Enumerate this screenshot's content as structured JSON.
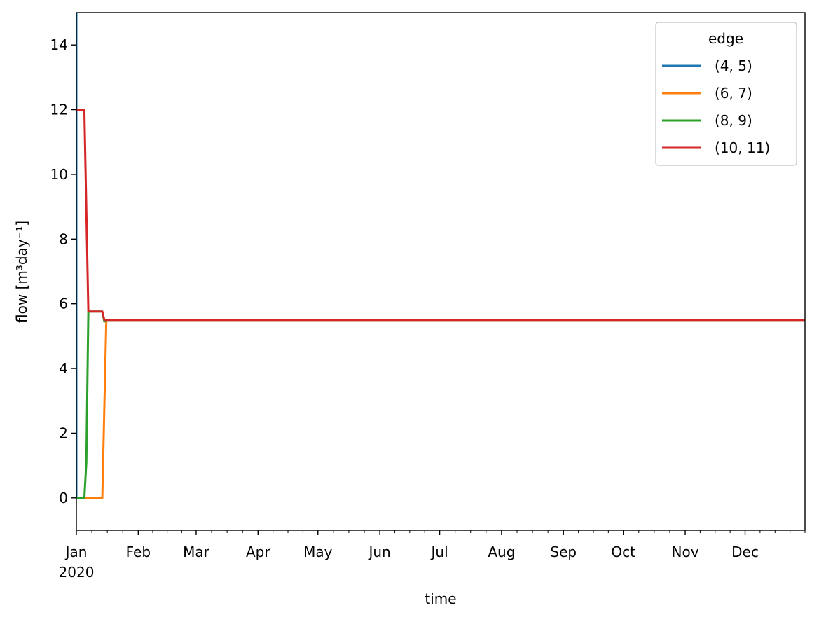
{
  "chart_data": {
    "type": "line",
    "xlabel": "time",
    "ylabel": "flow [m³day⁻¹]",
    "xlim": [
      "2020-01-01",
      "2020-12-31"
    ],
    "ylim": [
      -1,
      15
    ],
    "yticks": [
      0,
      2,
      4,
      6,
      8,
      10,
      12,
      14
    ],
    "xticks": [
      {
        "date": "2020-01-01",
        "label": "Jan",
        "sublabel": "2020"
      },
      {
        "date": "2020-02-01",
        "label": "Feb"
      },
      {
        "date": "2020-03-01",
        "label": "Mar"
      },
      {
        "date": "2020-04-01",
        "label": "Apr"
      },
      {
        "date": "2020-05-01",
        "label": "May"
      },
      {
        "date": "2020-06-01",
        "label": "Jun"
      },
      {
        "date": "2020-07-01",
        "label": "Jul"
      },
      {
        "date": "2020-08-01",
        "label": "Aug"
      },
      {
        "date": "2020-09-01",
        "label": "Sep"
      },
      {
        "date": "2020-10-01",
        "label": "Oct"
      },
      {
        "date": "2020-11-01",
        "label": "Nov"
      },
      {
        "date": "2020-12-01",
        "label": "Dec"
      }
    ],
    "grid": false,
    "legend": {
      "title": "edge",
      "position": "top-right"
    },
    "series": [
      {
        "name": "(4, 5)",
        "color": "#1f77b4",
        "points": [
          [
            "2020-01-01",
            0
          ],
          [
            "2020-01-01",
            15
          ]
        ]
      },
      {
        "name": "(6, 7)",
        "color": "#ff7f0e",
        "points": [
          [
            "2020-01-01",
            0
          ],
          [
            "2020-01-14",
            0
          ],
          [
            "2020-01-16",
            5.5
          ],
          [
            "2020-12-31",
            5.5
          ]
        ]
      },
      {
        "name": "(8, 9)",
        "color": "#2ca02c",
        "points": [
          [
            "2020-01-01",
            0
          ],
          [
            "2020-01-05",
            0
          ],
          [
            "2020-01-06",
            1.1
          ],
          [
            "2020-01-07",
            5.76
          ],
          [
            "2020-01-14",
            5.76
          ],
          [
            "2020-01-15",
            5.45
          ],
          [
            "2020-01-16",
            5.5
          ],
          [
            "2020-12-31",
            5.5
          ]
        ]
      },
      {
        "name": "(10, 11)",
        "color": "#d62728",
        "points": [
          [
            "2020-01-01",
            12
          ],
          [
            "2020-01-05",
            12
          ],
          [
            "2020-01-07",
            5.76
          ],
          [
            "2020-01-14",
            5.76
          ],
          [
            "2020-01-15",
            5.5
          ],
          [
            "2020-12-31",
            5.5
          ]
        ]
      }
    ]
  }
}
